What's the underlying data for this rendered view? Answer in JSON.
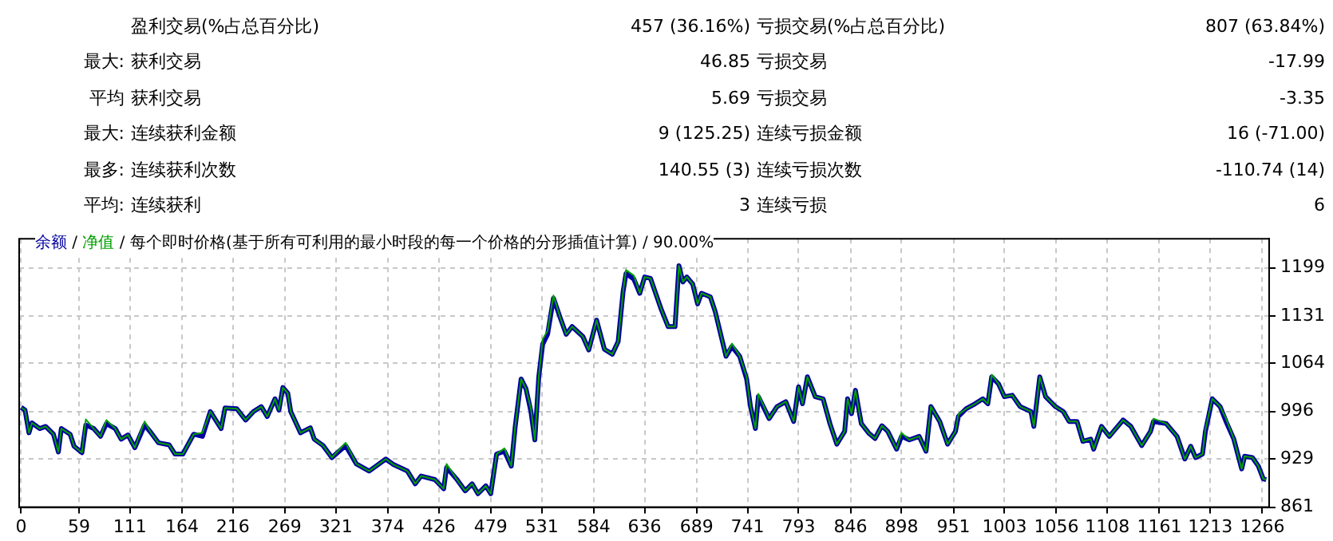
{
  "chart_data": {
    "type": "line",
    "title": "/ 每个即时价格(基于所有可利用的最小时段的每一个价格的分形插值计算) / 90.00%",
    "legend": "top left",
    "grid": true,
    "marker": "none",
    "line_style": "solid",
    "x": [
      0,
      4,
      8,
      11,
      19,
      25,
      33,
      38,
      41,
      50,
      54,
      62,
      66,
      74,
      81,
      87,
      96,
      102,
      109,
      116,
      126,
      132,
      140,
      151,
      157,
      165,
      176,
      185,
      193,
      204,
      208,
      220,
      229,
      237,
      245,
      251,
      259,
      263,
      267,
      272,
      275,
      285,
      295,
      299,
      308,
      317,
      331,
      342,
      355,
      364,
      372,
      380,
      394,
      402,
      408,
      422,
      431,
      434,
      444,
      453,
      460,
      466,
      474,
      479,
      485,
      493,
      500,
      504,
      510,
      515,
      520,
      524,
      528,
      532,
      537,
      543,
      550,
      556,
      562,
      573,
      579,
      587,
      595,
      603,
      609,
      614,
      617,
      625,
      631,
      636,
      642,
      653,
      660,
      667,
      671,
      675,
      679,
      685,
      690,
      694,
      703,
      708,
      719,
      725,
      733,
      740,
      744,
      749,
      752,
      763,
      771,
      780,
      788,
      793,
      797,
      802,
      810,
      818,
      825,
      832,
      840,
      843,
      847,
      851,
      857,
      865,
      871,
      878,
      884,
      893,
      898,
      906,
      916,
      923,
      928,
      937,
      945,
      953,
      956,
      964,
      973,
      981,
      986,
      990,
      997,
      1003,
      1011,
      1019,
      1030,
      1033,
      1039,
      1045,
      1055,
      1063,
      1069,
      1077,
      1083,
      1091,
      1094,
      1102,
      1110,
      1124,
      1132,
      1143,
      1152,
      1155,
      1168,
      1179,
      1187,
      1193,
      1198,
      1205,
      1208,
      1215,
      1223,
      1229,
      1237,
      1245,
      1248,
      1256,
      1262,
      1267,
      1270
    ],
    "series": [
      {
        "name": "余额",
        "color": "#0000a0",
        "values": [
          1002,
          998,
          966,
          980,
          972,
          975,
          964,
          939,
          972,
          964,
          947,
          938,
          977,
          972,
          961,
          979,
          972,
          957,
          963,
          945,
          977,
          967,
          952,
          949,
          936,
          936,
          964,
          961,
          996,
          972,
          1001,
          1000,
          984,
          996,
          1003,
          989,
          1014,
          998,
          1030,
          1022,
          996,
          966,
          973,
          957,
          948,
          931,
          948,
          922,
          912,
          921,
          929,
          921,
          912,
          894,
          905,
          900,
          887,
          917,
          901,
          884,
          894,
          880,
          891,
          880,
          936,
          940,
          919,
          975,
          1042,
          1028,
          996,
          956,
          1045,
          1091,
          1105,
          1156,
          1128,
          1105,
          1116,
          1102,
          1083,
          1125,
          1084,
          1077,
          1095,
          1165,
          1191,
          1183,
          1163,
          1186,
          1184,
          1140,
          1116,
          1116,
          1202,
          1179,
          1186,
          1176,
          1148,
          1163,
          1158,
          1137,
          1074,
          1088,
          1074,
          1042,
          1003,
          972,
          1017,
          986,
          1003,
          1010,
          982,
          1031,
          1007,
          1045,
          1017,
          1014,
          979,
          950,
          968,
          1014,
          993,
          1026,
          979,
          965,
          958,
          976,
          968,
          943,
          961,
          956,
          961,
          940,
          1003,
          982,
          950,
          968,
          989,
          1000,
          1007,
          1014,
          1007,
          1045,
          1035,
          1017,
          1019,
          1003,
          996,
          975,
          1045,
          1017,
          1003,
          996,
          982,
          982,
          954,
          957,
          943,
          975,
          961,
          984,
          975,
          948,
          968,
          982,
          979,
          961,
          929,
          947,
          931,
          936,
          968,
          1014,
          1003,
          982,
          957,
          915,
          933,
          931,
          919,
          901,
          900
        ]
      },
      {
        "name": "净值",
        "color": "#00a000",
        "values": [
          1002,
          998,
          966,
          980,
          972,
          975,
          964,
          939,
          972,
          964,
          947,
          938,
          985,
          972,
          961,
          984,
          972,
          957,
          963,
          945,
          982,
          967,
          952,
          949,
          936,
          936,
          964,
          966,
          996,
          972,
          1001,
          1000,
          984,
          996,
          1003,
          989,
          1014,
          998,
          1030,
          1022,
          996,
          966,
          973,
          957,
          948,
          931,
          952,
          922,
          912,
          921,
          929,
          921,
          912,
          894,
          905,
          900,
          887,
          922,
          901,
          884,
          894,
          880,
          891,
          880,
          936,
          944,
          919,
          975,
          1042,
          1028,
          1000,
          956,
          1045,
          1098,
          1110,
          1160,
          1128,
          1105,
          1116,
          1102,
          1083,
          1125,
          1084,
          1077,
          1095,
          1165,
          1196,
          1188,
          1163,
          1186,
          1184,
          1140,
          1116,
          1116,
          1202,
          1179,
          1186,
          1176,
          1148,
          1163,
          1158,
          1137,
          1074,
          1092,
          1074,
          1045,
          1003,
          972,
          1021,
          986,
          1003,
          1010,
          982,
          1031,
          1007,
          1045,
          1017,
          1014,
          979,
          950,
          968,
          1014,
          993,
          1026,
          979,
          965,
          958,
          976,
          968,
          943,
          966,
          956,
          961,
          940,
          1003,
          982,
          950,
          968,
          992,
          1000,
          1007,
          1014,
          1007,
          1048,
          1035,
          1017,
          1019,
          1003,
          996,
          975,
          1045,
          1017,
          1003,
          996,
          982,
          982,
          954,
          957,
          943,
          975,
          961,
          984,
          975,
          948,
          968,
          986,
          979,
          961,
          929,
          947,
          931,
          936,
          971,
          1014,
          1003,
          986,
          957,
          915,
          933,
          931,
          919,
          901,
          900
        ]
      }
    ],
    "xlim": [
      -2,
      1273
    ],
    "xticks": [
      0,
      59,
      111,
      164,
      216,
      269,
      321,
      374,
      426,
      479,
      531,
      584,
      636,
      689,
      741,
      793,
      846,
      898,
      951,
      1003,
      1056,
      1108,
      1161,
      1213,
      1266
    ],
    "ylim": [
      861,
      1240
    ],
    "yticks": [
      861,
      929,
      996,
      1064,
      1131,
      1199
    ],
    "annotations": [
      "盈利交易(%占总百分比)",
      "457 (36.16%)",
      "亏损交易(%占总百分比)",
      "807 (63.84%)",
      "最大:",
      "获利交易",
      "46.85",
      "亏损交易",
      "-17.99",
      "平均",
      "获利交易",
      "5.69",
      "亏损交易",
      "-3.35",
      "最大:",
      "连续获利金额",
      "9 (125.25)",
      "连续亏损金额",
      "16 (-71.00)",
      "最多:",
      "连续获利次数",
      "140.55 (3)",
      "连续亏损次数",
      "-110.74 (14)",
      "平均:",
      "连续获利",
      "3",
      "连续亏损",
      "6",
      "/"
    ]
  }
}
